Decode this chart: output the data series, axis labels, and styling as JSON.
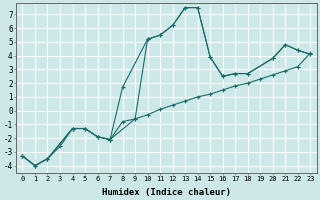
{
  "xlabel": "Humidex (Indice chaleur)",
  "bg_color": "#cce8e8",
  "grid_color": "#ffffff",
  "line_color": "#1a6b6b",
  "xlim": [
    -0.5,
    23.5
  ],
  "ylim": [
    -4.5,
    7.8
  ],
  "xticks": [
    0,
    1,
    2,
    3,
    4,
    5,
    6,
    7,
    8,
    9,
    10,
    11,
    12,
    13,
    14,
    15,
    16,
    17,
    18,
    19,
    20,
    21,
    22,
    23
  ],
  "yticks": [
    -4,
    -3,
    -2,
    -1,
    0,
    1,
    2,
    3,
    4,
    5,
    6,
    7
  ],
  "line1_x": [
    0,
    1,
    2,
    3,
    4,
    5,
    6,
    7,
    8,
    9,
    10,
    11,
    12,
    13,
    14,
    15,
    16,
    17,
    18,
    19,
    20,
    21,
    22,
    23
  ],
  "line1_y": [
    -3.3,
    -4.0,
    -3.5,
    -2.6,
    -1.3,
    -1.3,
    -1.9,
    -2.1,
    -0.8,
    -0.6,
    -0.3,
    0.1,
    0.4,
    0.7,
    1.0,
    1.2,
    1.5,
    1.8,
    2.0,
    2.3,
    2.6,
    2.9,
    3.2,
    4.2
  ],
  "line2_x": [
    0,
    1,
    2,
    4,
    5,
    6,
    7,
    8,
    10,
    11,
    12,
    13,
    14,
    15,
    16,
    17,
    18,
    20,
    21,
    22,
    23
  ],
  "line2_y": [
    -3.3,
    -4.0,
    -3.5,
    -1.3,
    -1.3,
    -1.9,
    -2.1,
    1.7,
    5.2,
    5.5,
    6.2,
    7.5,
    7.5,
    3.9,
    2.5,
    2.7,
    2.7,
    3.8,
    4.8,
    4.4,
    4.1
  ],
  "line3_x": [
    0,
    1,
    2,
    4,
    5,
    6,
    7,
    9,
    10,
    11,
    12,
    13,
    14,
    15,
    16,
    17,
    18,
    20,
    21,
    22,
    23
  ],
  "line3_y": [
    -3.3,
    -4.0,
    -3.5,
    -1.3,
    -1.3,
    -1.9,
    -2.1,
    -0.6,
    5.2,
    5.5,
    6.2,
    7.5,
    7.5,
    3.9,
    2.5,
    2.7,
    2.7,
    3.8,
    4.8,
    4.4,
    4.1
  ]
}
